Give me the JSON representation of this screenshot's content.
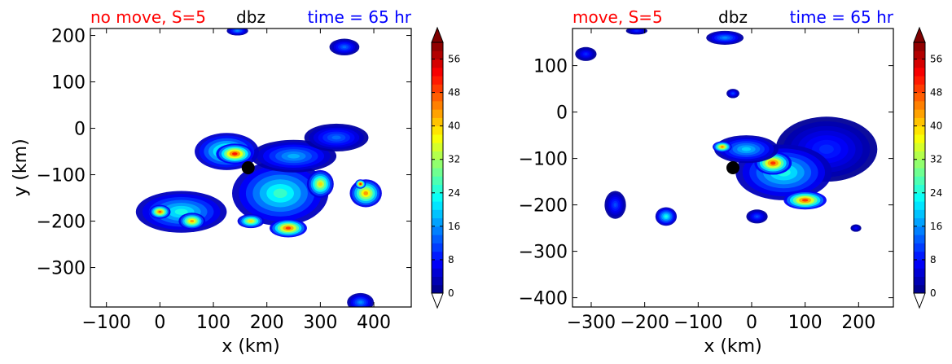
{
  "chart_data": [
    {
      "type": "heatmap",
      "title_left": "no move, S=5",
      "title_center": "dbz",
      "title_right": "time = 65 hr",
      "title_left_color": "#ff0000",
      "title_right_color": "#0000ff",
      "xlabel": "x (km)",
      "ylabel": "y (km)",
      "xlim": [
        -130,
        470
      ],
      "ylim": [
        -385,
        215
      ],
      "xticks": [
        -100,
        0,
        100,
        200,
        300,
        400
      ],
      "yticks": [
        -300,
        -200,
        -100,
        0,
        100,
        200
      ],
      "marker": {
        "x": 165,
        "y": -85
      },
      "colorbar": {
        "min": 0,
        "max": 60,
        "ticks": [
          0,
          8,
          16,
          24,
          32,
          40,
          48,
          56
        ]
      },
      "blobs": [
        {
          "x": 225,
          "y": -140,
          "rx": 90,
          "ry": 70,
          "v": 26
        },
        {
          "x": 250,
          "y": -60,
          "rx": 80,
          "ry": 35,
          "v": 18
        },
        {
          "x": 330,
          "y": -20,
          "rx": 60,
          "ry": 30,
          "v": 14
        },
        {
          "x": 125,
          "y": -50,
          "rx": 60,
          "ry": 40,
          "v": 30
        },
        {
          "x": 140,
          "y": -55,
          "rx": 35,
          "ry": 22,
          "v": 52
        },
        {
          "x": 40,
          "y": -180,
          "rx": 85,
          "ry": 45,
          "v": 24
        },
        {
          "x": 0,
          "y": -180,
          "rx": 20,
          "ry": 15,
          "v": 48
        },
        {
          "x": 60,
          "y": -200,
          "rx": 25,
          "ry": 18,
          "v": 44
        },
        {
          "x": 240,
          "y": -215,
          "rx": 35,
          "ry": 20,
          "v": 50
        },
        {
          "x": 300,
          "y": -120,
          "rx": 25,
          "ry": 30,
          "v": 40
        },
        {
          "x": 385,
          "y": -140,
          "rx": 30,
          "ry": 30,
          "v": 44
        },
        {
          "x": 170,
          "y": -200,
          "rx": 25,
          "ry": 15,
          "v": 40
        },
        {
          "x": 345,
          "y": 175,
          "rx": 28,
          "ry": 18,
          "v": 14
        },
        {
          "x": 145,
          "y": 210,
          "rx": 20,
          "ry": 10,
          "v": 16
        },
        {
          "x": 375,
          "y": -375,
          "rx": 25,
          "ry": 20,
          "v": 16
        },
        {
          "x": 375,
          "y": -120,
          "rx": 10,
          "ry": 10,
          "v": 55
        }
      ]
    },
    {
      "type": "heatmap",
      "title_left": "move, S=5",
      "title_center": "dbz",
      "title_right": "time = 65 hr",
      "title_left_color": "#ff0000",
      "title_right_color": "#0000ff",
      "xlabel": "x (km)",
      "ylabel": "",
      "xlim": [
        -335,
        265
      ],
      "ylim": [
        -420,
        180
      ],
      "xticks": [
        -300,
        -200,
        -100,
        0,
        100,
        200
      ],
      "yticks": [
        -400,
        -300,
        -200,
        -100,
        0,
        100
      ],
      "marker": {
        "x": -35,
        "y": -120
      },
      "colorbar": {
        "min": 0,
        "max": 60,
        "ticks": [
          0,
          8,
          16,
          24,
          32,
          40,
          48,
          56
        ]
      },
      "blobs": [
        {
          "x": 140,
          "y": -80,
          "rx": 95,
          "ry": 70,
          "v": 10
        },
        {
          "x": 60,
          "y": -130,
          "rx": 90,
          "ry": 60,
          "v": 24
        },
        {
          "x": 40,
          "y": -110,
          "rx": 35,
          "ry": 25,
          "v": 50
        },
        {
          "x": 100,
          "y": -190,
          "rx": 40,
          "ry": 20,
          "v": 50
        },
        {
          "x": -10,
          "y": -80,
          "rx": 60,
          "ry": 30,
          "v": 20
        },
        {
          "x": -55,
          "y": -75,
          "rx": 18,
          "ry": 12,
          "v": 46
        },
        {
          "x": -160,
          "y": -225,
          "rx": 20,
          "ry": 20,
          "v": 24
        },
        {
          "x": -255,
          "y": -200,
          "rx": 20,
          "ry": 30,
          "v": 12
        },
        {
          "x": 10,
          "y": -225,
          "rx": 20,
          "ry": 15,
          "v": 12
        },
        {
          "x": -50,
          "y": 160,
          "rx": 35,
          "ry": 15,
          "v": 16
        },
        {
          "x": -310,
          "y": 125,
          "rx": 20,
          "ry": 15,
          "v": 10
        },
        {
          "x": -35,
          "y": 40,
          "rx": 12,
          "ry": 10,
          "v": 12
        },
        {
          "x": 195,
          "y": -250,
          "rx": 10,
          "ry": 8,
          "v": 8
        },
        {
          "x": -215,
          "y": 175,
          "rx": 20,
          "ry": 8,
          "v": 10
        }
      ]
    }
  ]
}
